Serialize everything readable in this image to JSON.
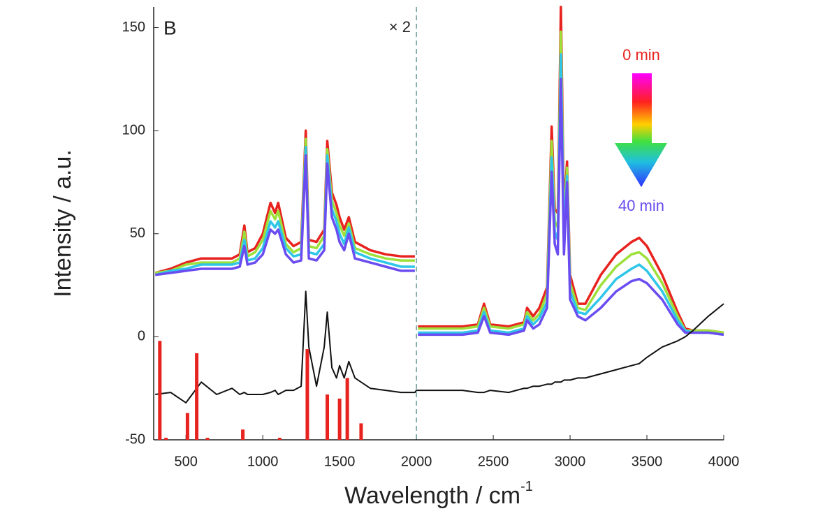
{
  "chart_data": {
    "type": "line",
    "panel_label": "B",
    "scale_note": "× 2",
    "legend_start": "0 min",
    "legend_end": "40 min",
    "xlabel": "Wavelength / cm",
    "xlabel_sup": "-1",
    "ylabel": "Intensity / a.u.",
    "xlim": [
      290,
      4000
    ],
    "ylim": [
      -50,
      160
    ],
    "xticks": [
      500,
      1000,
      1500,
      2000,
      2500,
      3000,
      3500,
      4000
    ],
    "yticks": [
      -50,
      0,
      50,
      100,
      150
    ],
    "divider_x": 2000,
    "x": [
      300,
      400,
      500,
      600,
      700,
      800,
      850,
      880,
      900,
      950,
      1000,
      1050,
      1080,
      1100,
      1150,
      1200,
      1250,
      1280,
      1300,
      1350,
      1400,
      1420,
      1450,
      1480,
      1500,
      1530,
      1560,
      1600,
      1700,
      1800,
      1900,
      1990,
      2000,
      2010,
      2100,
      2200,
      2300,
      2400,
      2440,
      2480,
      2600,
      2700,
      2720,
      2760,
      2800,
      2850,
      2880,
      2900,
      2920,
      2940,
      2960,
      2980,
      3000,
      3050,
      3100,
      3200,
      3300,
      3400,
      3450,
      3500,
      3600,
      3700,
      3750,
      3800,
      3900,
      4000
    ],
    "series": [
      {
        "color": "#e8231f",
        "values": [
          31,
          33,
          36,
          38,
          38,
          38,
          40,
          54,
          41,
          43,
          50,
          65,
          60,
          65,
          48,
          44,
          46,
          100,
          47,
          46,
          52,
          95,
          70,
          64,
          58,
          52,
          58,
          46,
          42,
          40,
          39,
          39,
          null,
          5,
          5,
          5,
          5,
          6,
          16,
          6,
          5,
          7,
          14,
          10,
          14,
          24,
          102,
          62,
          60,
          160,
          60,
          85,
          30,
          16,
          16,
          30,
          40,
          46,
          48,
          44,
          30,
          12,
          4,
          3,
          3,
          2
        ]
      },
      {
        "color": "#9ee03a",
        "values": [
          31,
          32,
          35,
          36,
          36,
          36,
          38,
          51,
          39,
          41,
          47,
          61,
          57,
          61,
          45,
          41,
          43,
          96,
          44,
          43,
          49,
          91,
          66,
          60,
          54,
          49,
          55,
          43,
          40,
          38,
          37,
          37,
          null,
          4,
          4,
          4,
          4,
          5,
          14,
          5,
          4,
          6,
          12,
          8,
          11,
          21,
          95,
          56,
          53,
          148,
          53,
          82,
          26,
          14,
          13,
          25,
          34,
          40,
          41,
          38,
          26,
          10,
          3,
          3,
          3,
          2
        ]
      },
      {
        "color": "#2fc6e8",
        "values": [
          30,
          32,
          33,
          35,
          35,
          35,
          36,
          47,
          37,
          38,
          43,
          56,
          53,
          56,
          43,
          39,
          40,
          92,
          41,
          40,
          45,
          88,
          62,
          56,
          50,
          45,
          53,
          41,
          38,
          36,
          34,
          34,
          null,
          2,
          2,
          2,
          2,
          3,
          12,
          3,
          2,
          4,
          10,
          6,
          9,
          17,
          87,
          51,
          47,
          137,
          47,
          78,
          22,
          12,
          11,
          19,
          28,
          33,
          35,
          32,
          22,
          8,
          3,
          2,
          2,
          1
        ]
      },
      {
        "color": "#6a4cf0",
        "values": [
          30,
          31,
          32,
          33,
          33,
          33,
          34,
          44,
          35,
          36,
          40,
          52,
          50,
          52,
          40,
          36,
          37,
          88,
          38,
          37,
          42,
          84,
          58,
          52,
          46,
          42,
          50,
          38,
          36,
          34,
          32,
          32,
          null,
          1,
          1,
          1,
          1,
          2,
          10,
          2,
          1,
          3,
          8,
          4,
          6,
          14,
          80,
          45,
          40,
          125,
          40,
          75,
          18,
          10,
          8,
          14,
          22,
          27,
          28,
          26,
          18,
          6,
          2,
          2,
          2,
          1
        ]
      },
      {
        "color": "#111111",
        "values": [
          -28,
          -27,
          -32,
          -22,
          -28,
          -25,
          -28,
          -27,
          -28,
          -28,
          -28,
          -27,
          -26,
          -28,
          -26,
          -26,
          -24,
          22,
          -5,
          -24,
          -5,
          12,
          -15,
          -20,
          -14,
          -20,
          -12,
          -20,
          -25,
          -26,
          -27,
          -27,
          -26,
          -26,
          -26,
          -26,
          -26,
          -27,
          -27,
          -26,
          -27,
          -25,
          -25,
          -24,
          -24,
          -23,
          -23,
          -22,
          -22,
          -22,
          -21,
          -21,
          -21,
          -20,
          -20,
          -18,
          -16,
          -14,
          -13,
          -10,
          -5,
          -2,
          0,
          3,
          10,
          16
        ]
      }
    ],
    "sticks": {
      "color": "#e8231f",
      "x": [
        330,
        370,
        510,
        570,
        640,
        870,
        1110,
        1290,
        1420,
        1500,
        1550,
        1640
      ],
      "values": [
        -2,
        -49,
        -37,
        -8,
        -49,
        -45,
        -49,
        -6,
        -28,
        -30,
        -20,
        -42
      ]
    }
  }
}
